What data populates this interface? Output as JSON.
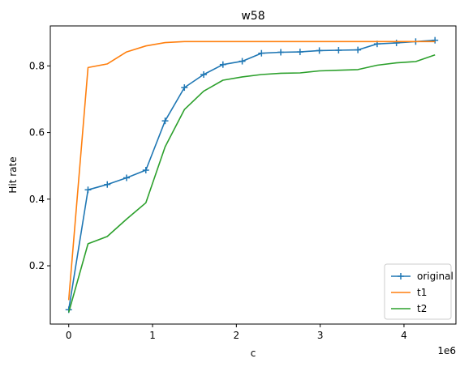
{
  "chart_data": {
    "type": "line",
    "title": "w58",
    "xlabel": "c",
    "ylabel": "Hit rate",
    "x_offset_label": "1e6",
    "xlim": [
      -0.22,
      4.62
    ],
    "ylim": [
      0.025,
      0.92
    ],
    "xticks": [
      0,
      1,
      2,
      3,
      4
    ],
    "xtick_labels": [
      "0",
      "1",
      "2",
      "3",
      "4"
    ],
    "yticks": [
      0.2,
      0.4,
      0.6,
      0.8
    ],
    "ytick_labels": [
      "0.2",
      "0.4",
      "0.6",
      "0.8"
    ],
    "grid": false,
    "legend_position": "lower-right",
    "x_units_multiplier": 1000000,
    "x": [
      0,
      0.23,
      0.46,
      0.69,
      0.92,
      1.15,
      1.38,
      1.61,
      1.84,
      2.07,
      2.3,
      2.53,
      2.76,
      2.99,
      3.22,
      3.45,
      3.68,
      3.91,
      4.14,
      4.37
    ],
    "series": [
      {
        "name": "original",
        "color": "#1f77b4",
        "marker": "+",
        "values": [
          0.068,
          0.428,
          0.444,
          0.464,
          0.487,
          0.635,
          0.735,
          0.774,
          0.804,
          0.814,
          0.838,
          0.841,
          0.842,
          0.846,
          0.847,
          0.848,
          0.866,
          0.869,
          0.873,
          0.877
        ]
      },
      {
        "name": "t1",
        "color": "#ff7f0e",
        "marker": "",
        "values": [
          0.097,
          0.795,
          0.806,
          0.842,
          0.86,
          0.87,
          0.873,
          0.873,
          0.873,
          0.873,
          0.873,
          0.873,
          0.873,
          0.873,
          0.873,
          0.873,
          0.873,
          0.873,
          0.873,
          0.873
        ]
      },
      {
        "name": "t2",
        "color": "#2ca02c",
        "marker": "",
        "values": [
          0.06,
          0.266,
          0.288,
          0.34,
          0.389,
          0.557,
          0.669,
          0.724,
          0.757,
          0.767,
          0.774,
          0.778,
          0.779,
          0.785,
          0.787,
          0.789,
          0.802,
          0.809,
          0.813,
          0.833
        ]
      }
    ]
  }
}
